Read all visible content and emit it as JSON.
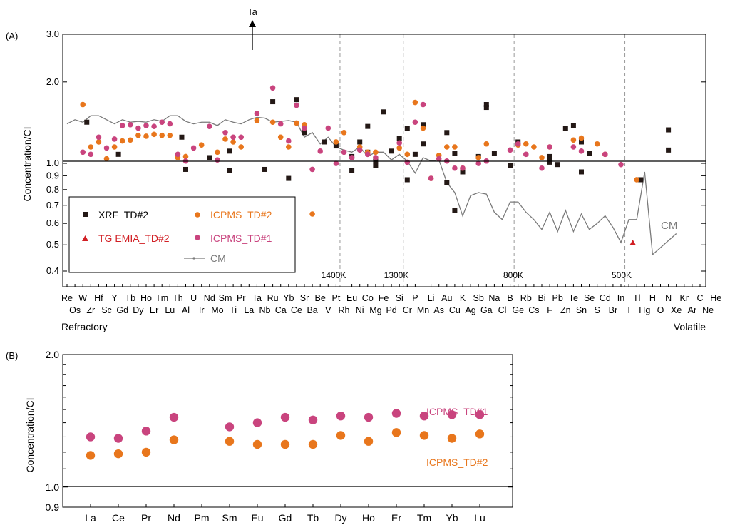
{
  "chart_data": [
    {
      "panel": "(A)",
      "type": "scatter",
      "yscale": "log",
      "ylabel": "Concentration/CI",
      "ylim": [
        0.35,
        3.0
      ],
      "yticks": [
        "0.4",
        "0.5",
        "0.6",
        "0.7",
        "0.8",
        "0.9",
        "1.0",
        "2.0",
        "3.0"
      ],
      "elements_row1": [
        "Re",
        "W",
        "Hf",
        "Y",
        "Tb",
        "Ho",
        "Tm",
        "Th",
        "U",
        "Nd",
        "Sm",
        "Pr",
        "Ta",
        "Ru",
        "Yb",
        "Sr",
        "Be",
        "Pt",
        "Eu",
        "Co",
        "Fe",
        "Si",
        "P",
        "Li",
        "Au",
        "K",
        "Sb",
        "Na",
        "B",
        "Rb",
        "Bi",
        "Pb",
        "Te",
        "Se",
        "Cd",
        "In",
        "Tl",
        "H",
        "N",
        "Kr",
        "C",
        "He"
      ],
      "elements_row2": [
        "Os",
        "Zr",
        "Sc",
        "Gd",
        "Dy",
        "Er",
        "Lu",
        "Al",
        "Ir",
        "Mo",
        "Ti",
        "La",
        "Nb",
        "Ca",
        "Ce",
        "Ba",
        "V",
        "Rh",
        "Ni",
        "Mg",
        "Pd",
        "Cr",
        "Mn",
        "As",
        "Cu",
        "Ag",
        "Ga",
        "Cl",
        "Ge",
        "Cs",
        "F",
        "Zn",
        "Sn",
        "S",
        "Br",
        "I",
        "Hg",
        "O",
        "Xe",
        "Ar",
        "Ne"
      ],
      "left_label": "Refractory",
      "right_label": "Volatile",
      "arrow_label": "Ta",
      "condensation_temps": [
        "1400K",
        "1300K",
        "800K",
        "500K"
      ],
      "cm_label": "CM",
      "legend": [
        "XRF_TD#2",
        "ICPMS_TD#2",
        "TG EMIA_TD#2",
        "ICPMS_TD#1",
        "CM"
      ],
      "series": [
        {
          "name": "XRF_TD#2",
          "color": "#231815",
          "marker": "square",
          "points": [
            [
              2.5,
              1.42
            ],
            [
              6.5,
              1.08
            ],
            [
              14.5,
              1.25
            ],
            [
              15,
              0.95
            ],
            [
              18,
              1.05
            ],
            [
              20.5,
              0.94
            ],
            [
              20.5,
              1.11
            ],
            [
              25,
              0.95
            ],
            [
              26,
              1.69
            ],
            [
              28,
              0.88
            ],
            [
              29,
              1.72
            ],
            [
              30,
              1.3
            ],
            [
              32.5,
              1.2
            ],
            [
              34,
              1.16
            ],
            [
              36,
              1.06
            ],
            [
              36,
              0.94
            ],
            [
              37,
              1.2
            ],
            [
              38,
              1.1
            ],
            [
              38,
              1.37
            ],
            [
              39,
              1.02
            ],
            [
              39,
              0.98
            ],
            [
              40,
              1.55
            ],
            [
              41,
              1.11
            ],
            [
              42,
              1.24
            ],
            [
              43,
              1.35
            ],
            [
              43,
              0.87
            ],
            [
              44,
              1.08
            ],
            [
              45,
              1.39
            ],
            [
              45,
              1.18
            ],
            [
              48,
              0.85
            ],
            [
              48,
              1.3
            ],
            [
              49,
              1.09
            ],
            [
              49,
              0.67
            ],
            [
              50,
              0.93
            ],
            [
              52,
              1.06
            ],
            [
              53,
              1.65
            ],
            [
              53,
              1.61
            ],
            [
              54,
              1.09
            ],
            [
              56,
              0.98
            ],
            [
              57,
              1.2
            ],
            [
              61,
              1.06
            ],
            [
              61,
              1.02
            ],
            [
              61,
              1.01
            ],
            [
              62,
              0.99
            ],
            [
              63,
              1.35
            ],
            [
              64,
              1.38
            ],
            [
              65,
              1.2
            ],
            [
              65,
              0.93
            ],
            [
              66,
              1.09
            ],
            [
              76,
              1.33
            ],
            [
              76,
              1.12
            ],
            [
              72.5,
              0.87
            ]
          ]
        },
        {
          "name": "ICPMS_TD#2",
          "color": "#e8761c",
          "marker": "circle",
          "points": [
            [
              2,
              1.65
            ],
            [
              3,
              1.15
            ],
            [
              4,
              1.2
            ],
            [
              5,
              1.04
            ],
            [
              6,
              1.15
            ],
            [
              7,
              1.21
            ],
            [
              8,
              1.22
            ],
            [
              9,
              1.27
            ],
            [
              10,
              1.26
            ],
            [
              11,
              1.28
            ],
            [
              12,
              1.27
            ],
            [
              13,
              1.27
            ],
            [
              14,
              1.05
            ],
            [
              15,
              1.06
            ],
            [
              17,
              1.17
            ],
            [
              19,
              1.1
            ],
            [
              20,
              1.23
            ],
            [
              21,
              1.2
            ],
            [
              22,
              1.15
            ],
            [
              24,
              1.44
            ],
            [
              26,
              1.42
            ],
            [
              27,
              1.25
            ],
            [
              28,
              1.15
            ],
            [
              29,
              1.41
            ],
            [
              30,
              1.39
            ],
            [
              31,
              0.65
            ],
            [
              34,
              1.2
            ],
            [
              35,
              1.3
            ],
            [
              37,
              1.15
            ],
            [
              38,
              1.1
            ],
            [
              39,
              1.1
            ],
            [
              42,
              1.14
            ],
            [
              43,
              1.08
            ],
            [
              44,
              1.68
            ],
            [
              45,
              1.35
            ],
            [
              46,
              0.88
            ],
            [
              47,
              1.07
            ],
            [
              48,
              1.15
            ],
            [
              49,
              1.15
            ],
            [
              50,
              0.96
            ],
            [
              52,
              1.05
            ],
            [
              53,
              1.18
            ],
            [
              57,
              1.17
            ],
            [
              58,
              1.18
            ],
            [
              59,
              1.15
            ],
            [
              60,
              1.05
            ],
            [
              61,
              1.15
            ],
            [
              64,
              1.22
            ],
            [
              65,
              1.24
            ],
            [
              67,
              1.18
            ],
            [
              68,
              1.08
            ],
            [
              72,
              0.87
            ]
          ]
        },
        {
          "name": "ICPMS_TD#1",
          "color": "#c9447e",
          "marker": "circle",
          "points": [
            [
              2,
              1.1
            ],
            [
              3,
              1.08
            ],
            [
              4,
              1.25
            ],
            [
              5,
              1.14
            ],
            [
              6,
              1.23
            ],
            [
              7,
              1.38
            ],
            [
              8,
              1.39
            ],
            [
              9,
              1.35
            ],
            [
              10,
              1.38
            ],
            [
              11,
              1.37
            ],
            [
              12,
              1.42
            ],
            [
              13,
              1.4
            ],
            [
              14,
              1.08
            ],
            [
              15,
              1.02
            ],
            [
              16,
              1.14
            ],
            [
              18,
              1.37
            ],
            [
              19,
              1.03
            ],
            [
              20,
              1.3
            ],
            [
              21,
              1.25
            ],
            [
              22,
              1.25
            ],
            [
              24,
              1.53
            ],
            [
              26,
              1.9
            ],
            [
              27,
              1.4
            ],
            [
              28,
              1.21
            ],
            [
              29,
              1.64
            ],
            [
              30,
              1.35
            ],
            [
              31,
              0.95
            ],
            [
              32,
              1.11
            ],
            [
              33,
              1.35
            ],
            [
              34,
              1.0
            ],
            [
              35,
              1.1
            ],
            [
              36,
              1.05
            ],
            [
              37,
              1.12
            ],
            [
              38,
              1.08
            ],
            [
              39,
              1.05
            ],
            [
              42,
              1.19
            ],
            [
              43,
              1.01
            ],
            [
              44,
              1.42
            ],
            [
              45,
              1.65
            ],
            [
              46,
              0.88
            ],
            [
              47,
              1.04
            ],
            [
              48,
              1.02
            ],
            [
              49,
              0.96
            ],
            [
              50,
              0.96
            ],
            [
              52,
              1.0
            ],
            [
              53,
              1.02
            ],
            [
              56,
              1.12
            ],
            [
              57,
              1.18
            ],
            [
              58,
              1.08
            ],
            [
              60,
              0.96
            ],
            [
              61,
              1.15
            ],
            [
              64,
              1.15
            ],
            [
              65,
              1.11
            ],
            [
              68,
              1.08
            ],
            [
              70,
              0.99
            ]
          ]
        },
        {
          "name": "TG EMIA_TD#2",
          "color": "#d11f24",
          "marker": "triangle",
          "points": [
            [
              71.5,
              0.51
            ]
          ]
        },
        {
          "name": "CM",
          "color": "#7a7a7a",
          "marker": "line",
          "points": [
            [
              0,
              1.4
            ],
            [
              1,
              1.45
            ],
            [
              2,
              1.42
            ],
            [
              3,
              1.5
            ],
            [
              4,
              1.5
            ],
            [
              5,
              1.45
            ],
            [
              6,
              1.4
            ],
            [
              7,
              1.45
            ],
            [
              8,
              1.42
            ],
            [
              9,
              1.43
            ],
            [
              10,
              1.42
            ],
            [
              11,
              1.45
            ],
            [
              12,
              1.43
            ],
            [
              13,
              1.5
            ],
            [
              14,
              1.5
            ],
            [
              15,
              1.43
            ],
            [
              16,
              1.4
            ],
            [
              17,
              1.42
            ],
            [
              18,
              1.42
            ],
            [
              19,
              1.38
            ],
            [
              20,
              1.45
            ],
            [
              21,
              1.42
            ],
            [
              22,
              1.4
            ],
            [
              23,
              1.45
            ],
            [
              24,
              1.48
            ],
            [
              25,
              1.47
            ],
            [
              26,
              1.42
            ],
            [
              27,
              1.43
            ],
            [
              28,
              1.44
            ],
            [
              29,
              1.42
            ],
            [
              30,
              1.25
            ],
            [
              31,
              1.3
            ],
            [
              32,
              1.18
            ],
            [
              33,
              1.25
            ],
            [
              34,
              1.15
            ],
            [
              35,
              1.12
            ],
            [
              36,
              1.1
            ],
            [
              37,
              1.15
            ],
            [
              38,
              1.06
            ],
            [
              39,
              1.1
            ],
            [
              40,
              1.1
            ],
            [
              41,
              1.03
            ],
            [
              42,
              1.08
            ],
            [
              43,
              1.02
            ],
            [
              44,
              0.92
            ],
            [
              45,
              1.05
            ],
            [
              46,
              1.02
            ],
            [
              47,
              1.03
            ],
            [
              48,
              0.85
            ],
            [
              49,
              0.78
            ],
            [
              50,
              0.64
            ],
            [
              51,
              0.76
            ],
            [
              52,
              0.78
            ],
            [
              53,
              0.77
            ],
            [
              54,
              0.66
            ],
            [
              55,
              0.62
            ],
            [
              56,
              0.72
            ],
            [
              57,
              0.72
            ],
            [
              58,
              0.66
            ],
            [
              59,
              0.62
            ],
            [
              60,
              0.57
            ],
            [
              61,
              0.66
            ],
            [
              62,
              0.56
            ],
            [
              63,
              0.67
            ],
            [
              64,
              0.56
            ],
            [
              65,
              0.65
            ],
            [
              66,
              0.57
            ],
            [
              67,
              0.6
            ],
            [
              68,
              0.64
            ],
            [
              69,
              0.58
            ],
            [
              70,
              0.51
            ],
            [
              71,
              0.62
            ],
            [
              72,
              0.62
            ],
            [
              73,
              0.93
            ],
            [
              74,
              0.46
            ],
            [
              77,
              0.55
            ]
          ]
        }
      ]
    },
    {
      "panel": "(B)",
      "type": "scatter",
      "yscale": "log",
      "ylabel": "Concentration/CI",
      "ylim": [
        0.9,
        2.0
      ],
      "yticks": [
        "0.9",
        "1.0",
        "2.0"
      ],
      "categories": [
        "La",
        "Ce",
        "Pr",
        "Nd",
        "Pm",
        "Sm",
        "Eu",
        "Gd",
        "Tb",
        "Dy",
        "Ho",
        "Er",
        "Tm",
        "Yb",
        "Lu"
      ],
      "series": [
        {
          "name": "ICPMS_TD#1",
          "color": "#c9447e",
          "values": [
            1.3,
            1.29,
            1.34,
            1.44,
            null,
            1.37,
            1.4,
            1.44,
            1.42,
            1.45,
            1.44,
            1.47,
            1.45,
            1.46,
            1.46
          ]
        },
        {
          "name": "ICPMS_TD#2",
          "color": "#e8761c",
          "values": [
            1.18,
            1.19,
            1.2,
            1.28,
            null,
            1.27,
            1.25,
            1.25,
            1.25,
            1.31,
            1.27,
            1.33,
            1.31,
            1.29,
            1.32
          ]
        }
      ]
    }
  ]
}
